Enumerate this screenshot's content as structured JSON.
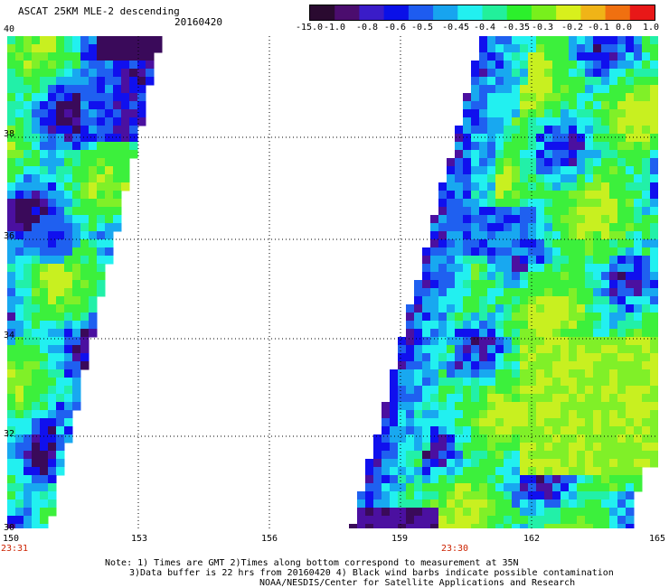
{
  "header": {
    "title": "ASCAT 25KM MLE-2 descending",
    "date": "20160420"
  },
  "colorbar": {
    "labels": [
      "-15.0",
      "-1.0",
      "-0.8",
      "-0.6",
      "-0.5",
      "-0.45",
      "-0.4",
      "-0.35",
      "-0.3",
      "-0.2",
      "-0.1",
      "0.0",
      "1.0"
    ],
    "colors": [
      "#2a0a30",
      "#4b0d6e",
      "#3a1cc8",
      "#0a10e8",
      "#1e5cf0",
      "#17a4ef",
      "#22f0f0",
      "#22f09b",
      "#2cf02c",
      "#78f01c",
      "#d8f01c",
      "#f0b417",
      "#f07010",
      "#e81818"
    ]
  },
  "map": {
    "lon_labels": [
      "150",
      "153",
      "156",
      "159",
      "162",
      "165"
    ],
    "lat_labels": [
      "40",
      "38",
      "36",
      "34",
      "32",
      "30"
    ],
    "time_labels": [
      {
        "text": "23:31",
        "lon": 150
      },
      {
        "text": "23:30",
        "lon": 160.2
      }
    ]
  },
  "notes": {
    "line1": "Note: 1) Times are GMT 2)Times along bottom correspond to measurement at 35N",
    "line2": "3)Data buffer is 22 hrs from 20160420 4) Black wind barbs indicate possible contamination",
    "line3": "NOAA/NESDIS/Center for Satellite Applications and Research"
  }
}
